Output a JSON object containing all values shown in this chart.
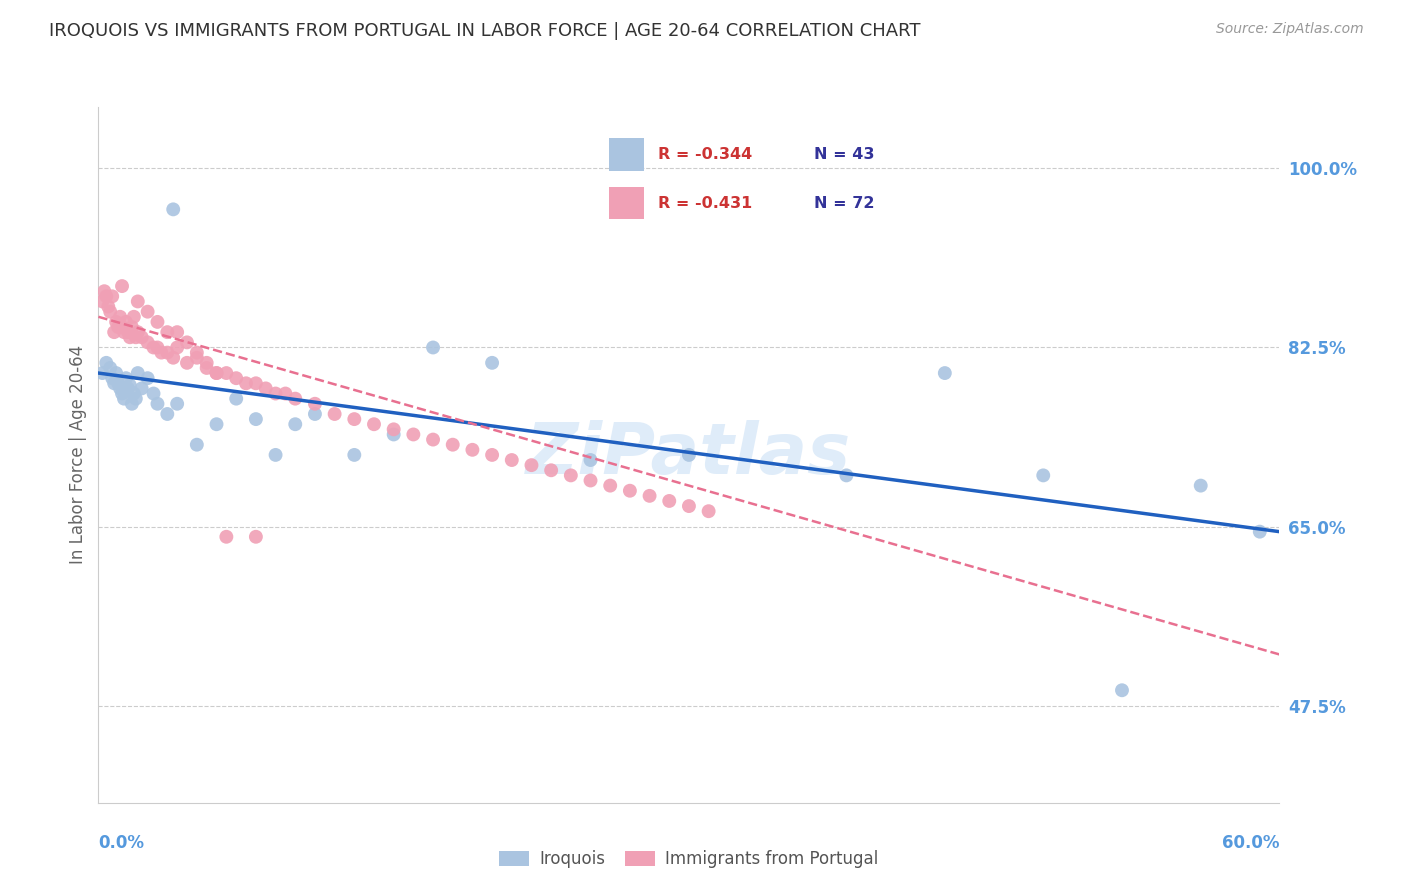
{
  "title": "IROQUOIS VS IMMIGRANTS FROM PORTUGAL IN LABOR FORCE | AGE 20-64 CORRELATION CHART",
  "source": "Source: ZipAtlas.com",
  "ylabel": "In Labor Force | Age 20-64",
  "ytick_values": [
    47.5,
    65.0,
    82.5,
    100.0
  ],
  "xlim": [
    0.0,
    0.6
  ],
  "ylim": [
    0.38,
    1.06
  ],
  "legend_r_blue": "-0.344",
  "legend_n_blue": "43",
  "legend_r_pink": "-0.431",
  "legend_n_pink": "72",
  "iroquois_color": "#aac4e0",
  "portugal_color": "#f0a0b5",
  "line_blue": "#2060c0",
  "line_pink": "#e87090",
  "iroquois_x": [
    0.002,
    0.004,
    0.006,
    0.007,
    0.008,
    0.009,
    0.01,
    0.011,
    0.012,
    0.013,
    0.014,
    0.015,
    0.016,
    0.017,
    0.018,
    0.019,
    0.02,
    0.022,
    0.025,
    0.028,
    0.03,
    0.035,
    0.04,
    0.05,
    0.06,
    0.07,
    0.08,
    0.09,
    0.1,
    0.11,
    0.13,
    0.15,
    0.2,
    0.25,
    0.3,
    0.38,
    0.43,
    0.48,
    0.52,
    0.56,
    0.59,
    0.038,
    0.17
  ],
  "iroquois_y": [
    0.8,
    0.81,
    0.805,
    0.795,
    0.79,
    0.8,
    0.79,
    0.785,
    0.78,
    0.775,
    0.795,
    0.785,
    0.788,
    0.77,
    0.78,
    0.775,
    0.8,
    0.785,
    0.795,
    0.78,
    0.77,
    0.76,
    0.77,
    0.73,
    0.75,
    0.775,
    0.755,
    0.72,
    0.75,
    0.76,
    0.72,
    0.74,
    0.81,
    0.715,
    0.72,
    0.7,
    0.8,
    0.7,
    0.49,
    0.69,
    0.645,
    0.96,
    0.825
  ],
  "portugal_x": [
    0.002,
    0.003,
    0.004,
    0.005,
    0.006,
    0.007,
    0.008,
    0.009,
    0.01,
    0.011,
    0.012,
    0.013,
    0.014,
    0.015,
    0.016,
    0.017,
    0.018,
    0.019,
    0.02,
    0.022,
    0.025,
    0.028,
    0.03,
    0.032,
    0.035,
    0.038,
    0.04,
    0.045,
    0.05,
    0.055,
    0.06,
    0.065,
    0.07,
    0.075,
    0.08,
    0.085,
    0.09,
    0.095,
    0.1,
    0.11,
    0.12,
    0.13,
    0.14,
    0.15,
    0.16,
    0.17,
    0.18,
    0.19,
    0.2,
    0.21,
    0.22,
    0.23,
    0.24,
    0.25,
    0.26,
    0.27,
    0.28,
    0.29,
    0.3,
    0.31,
    0.012,
    0.02,
    0.025,
    0.03,
    0.035,
    0.04,
    0.045,
    0.05,
    0.055,
    0.06,
    0.065,
    0.08
  ],
  "portugal_y": [
    0.87,
    0.88,
    0.875,
    0.865,
    0.86,
    0.875,
    0.84,
    0.85,
    0.845,
    0.855,
    0.845,
    0.84,
    0.85,
    0.84,
    0.835,
    0.845,
    0.855,
    0.835,
    0.84,
    0.835,
    0.83,
    0.825,
    0.825,
    0.82,
    0.82,
    0.815,
    0.825,
    0.81,
    0.815,
    0.805,
    0.8,
    0.8,
    0.795,
    0.79,
    0.79,
    0.785,
    0.78,
    0.78,
    0.775,
    0.77,
    0.76,
    0.755,
    0.75,
    0.745,
    0.74,
    0.735,
    0.73,
    0.725,
    0.72,
    0.715,
    0.71,
    0.705,
    0.7,
    0.695,
    0.69,
    0.685,
    0.68,
    0.675,
    0.67,
    0.665,
    0.885,
    0.87,
    0.86,
    0.85,
    0.84,
    0.84,
    0.83,
    0.82,
    0.81,
    0.8,
    0.64,
    0.64
  ]
}
